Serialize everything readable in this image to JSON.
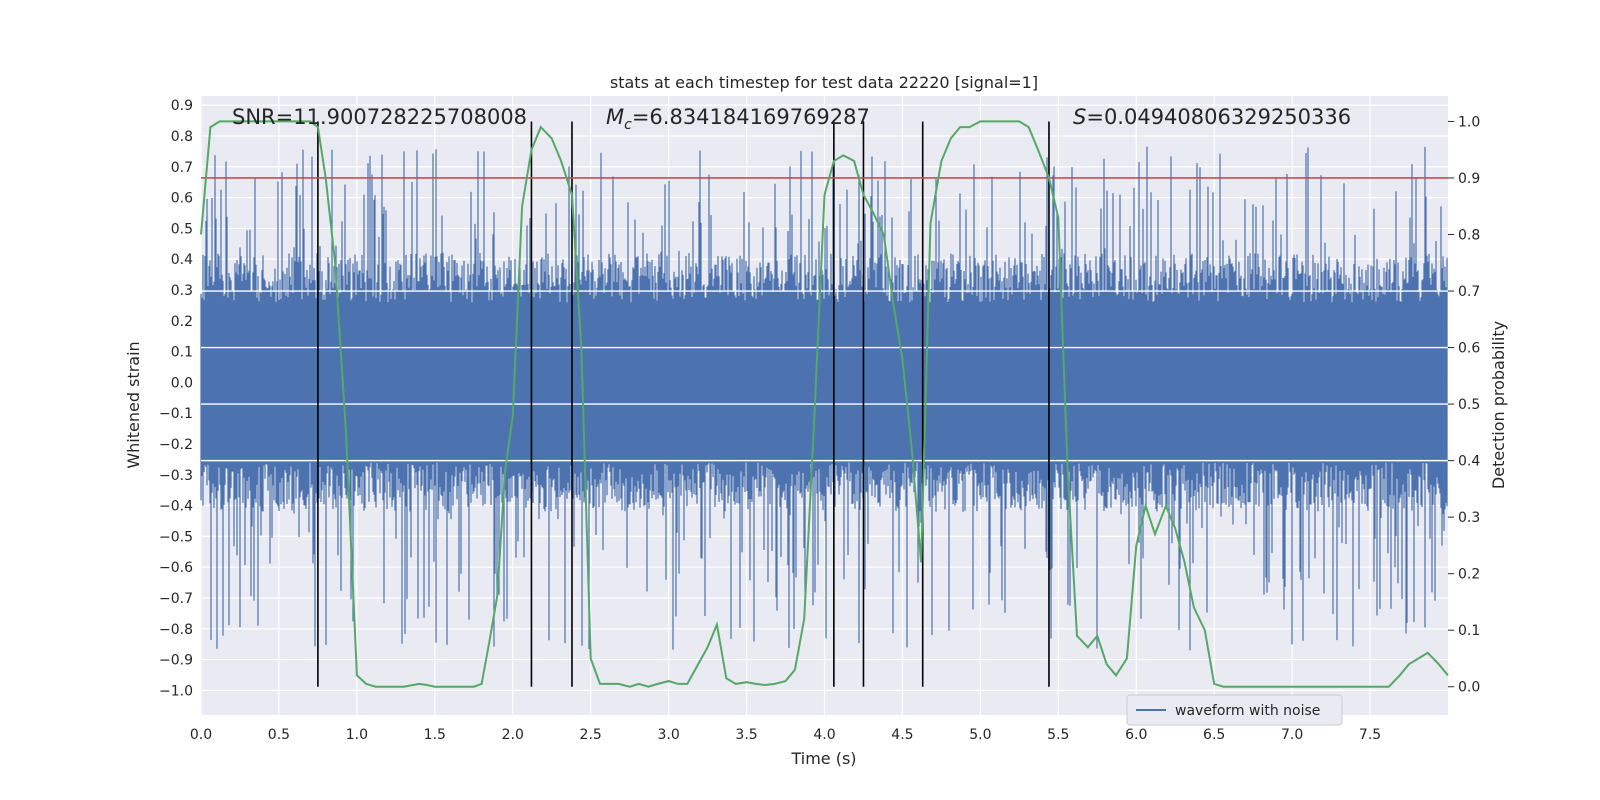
{
  "chart_data": {
    "type": "line",
    "title": "stats at each timestep for test data 22220 [signal=1]",
    "xlabel": "Time (s)",
    "ylabel_left": "Whitened strain",
    "ylabel_right": "Detection probability",
    "xlim": [
      0.0,
      8.0
    ],
    "ylim_left": [
      -1.08,
      0.93
    ],
    "ylim_right": [
      -0.05,
      1.045
    ],
    "xticks": [
      0.0,
      0.5,
      1.0,
      1.5,
      2.0,
      2.5,
      3.0,
      3.5,
      4.0,
      4.5,
      5.0,
      5.5,
      6.0,
      6.5,
      7.0,
      7.5
    ],
    "xtick_labels": [
      "0.0",
      "0.5",
      "1.0",
      "1.5",
      "2.0",
      "2.5",
      "3.0",
      "3.5",
      "4.0",
      "4.5",
      "5.0",
      "5.5",
      "6.0",
      "6.5",
      "7.0",
      "7.5"
    ],
    "yticks_left": [
      0.9,
      0.8,
      0.7,
      0.6,
      0.5,
      0.4,
      0.3,
      0.2,
      0.1,
      0.0,
      -0.1,
      -0.2,
      -0.3,
      -0.4,
      -0.5,
      -0.6,
      -0.7,
      -0.8,
      -0.9,
      -1.0
    ],
    "ytick_labels_left": [
      "0.9",
      "0.8",
      "0.7",
      "0.6",
      "0.5",
      "0.4",
      "0.3",
      "0.2",
      "0.1",
      "0.0",
      "−0.1",
      "−0.2",
      "−0.3",
      "−0.4",
      "−0.5",
      "−0.6",
      "−0.7",
      "−0.8",
      "−0.9",
      "−1.0"
    ],
    "yticks_right": [
      1.0,
      0.9,
      0.8,
      0.7,
      0.6,
      0.5,
      0.4,
      0.3,
      0.2,
      0.1,
      0.0
    ],
    "ytick_labels_right": [
      "1.0",
      "0.9",
      "0.8",
      "0.7",
      "0.6",
      "0.5",
      "0.4",
      "0.3",
      "0.2",
      "0.1",
      "0.0"
    ],
    "annotations": {
      "snr": "SNR=11.900728225708008",
      "mc_symbol": "M",
      "mc_sub": "c",
      "mc_value": "=6.834184169769287",
      "s_symbol": "S",
      "s_value": "=0.04940806329250336"
    },
    "legend": {
      "label": "waveform with noise",
      "location": "lower-right"
    },
    "threshold": 0.9,
    "event_lines_x": [
      0.75,
      2.12,
      2.38,
      4.06,
      4.25,
      4.63,
      5.44
    ],
    "series": [
      {
        "name": "waveform with noise",
        "axis": "left",
        "style": "noise-fill",
        "color": "#4c72b0",
        "envelope_typical": 0.42,
        "peak_range": [
          -0.95,
          0.83
        ]
      },
      {
        "name": "detection probability",
        "axis": "right",
        "color": "#55a868",
        "x": [
          0.0,
          0.06,
          0.12,
          0.2,
          0.3,
          0.4,
          0.5,
          0.6,
          0.7,
          0.75,
          0.8,
          0.86,
          0.93,
          1.0,
          1.06,
          1.12,
          1.2,
          1.3,
          1.4,
          1.45,
          1.5,
          1.6,
          1.7,
          1.75,
          1.8,
          1.85,
          1.9,
          1.95,
          2.0,
          2.06,
          2.12,
          2.18,
          2.25,
          2.31,
          2.38,
          2.44,
          2.5,
          2.56,
          2.62,
          2.68,
          2.75,
          2.81,
          2.87,
          2.93,
          3.0,
          3.06,
          3.12,
          3.18,
          3.25,
          3.31,
          3.37,
          3.43,
          3.5,
          3.56,
          3.62,
          3.68,
          3.75,
          3.81,
          3.87,
          3.93,
          4.0,
          4.06,
          4.12,
          4.19,
          4.25,
          4.31,
          4.38,
          4.44,
          4.5,
          4.56,
          4.62,
          4.68,
          4.75,
          4.81,
          4.87,
          4.93,
          5.0,
          5.06,
          5.12,
          5.19,
          5.25,
          5.31,
          5.37,
          5.44,
          5.5,
          5.56,
          5.62,
          5.69,
          5.75,
          5.81,
          5.87,
          5.94,
          6.0,
          6.06,
          6.12,
          6.19,
          6.25,
          6.31,
          6.37,
          6.44,
          6.5,
          6.56,
          6.62,
          6.69,
          6.75,
          6.81,
          6.87,
          6.94,
          7.0,
          7.06,
          7.12,
          7.19,
          7.25,
          7.31,
          7.37,
          7.44,
          7.5,
          7.56,
          7.62,
          7.69,
          7.75,
          7.81,
          7.87,
          7.94,
          8.0
        ],
        "y": [
          0.8,
          0.99,
          1.0,
          1.0,
          1.0,
          1.0,
          1.0,
          1.0,
          1.0,
          0.99,
          0.9,
          0.75,
          0.45,
          0.02,
          0.005,
          0.0,
          0.0,
          0.0,
          0.005,
          0.003,
          0.0,
          0.0,
          0.0,
          0.0,
          0.005,
          0.08,
          0.16,
          0.38,
          0.48,
          0.85,
          0.95,
          0.99,
          0.97,
          0.93,
          0.87,
          0.6,
          0.05,
          0.005,
          0.005,
          0.005,
          0.0,
          0.005,
          0.0,
          0.005,
          0.01,
          0.005,
          0.005,
          0.035,
          0.07,
          0.11,
          0.015,
          0.005,
          0.008,
          0.005,
          0.003,
          0.005,
          0.01,
          0.03,
          0.12,
          0.45,
          0.87,
          0.93,
          0.94,
          0.93,
          0.87,
          0.84,
          0.8,
          0.68,
          0.58,
          0.42,
          0.22,
          0.82,
          0.93,
          0.97,
          0.99,
          0.99,
          1.0,
          1.0,
          1.0,
          1.0,
          1.0,
          0.99,
          0.95,
          0.9,
          0.83,
          0.38,
          0.09,
          0.07,
          0.09,
          0.04,
          0.02,
          0.05,
          0.25,
          0.32,
          0.27,
          0.32,
          0.28,
          0.22,
          0.14,
          0.1,
          0.005,
          0.0,
          0.0,
          0.0,
          0.0,
          0.0,
          0.0,
          0.0,
          0.0,
          0.0,
          0.0,
          0.0,
          0.0,
          0.0,
          0.0,
          0.0,
          0.0,
          0.0,
          0.0,
          0.02,
          0.04,
          0.05,
          0.06,
          0.04,
          0.02
        ]
      }
    ]
  }
}
